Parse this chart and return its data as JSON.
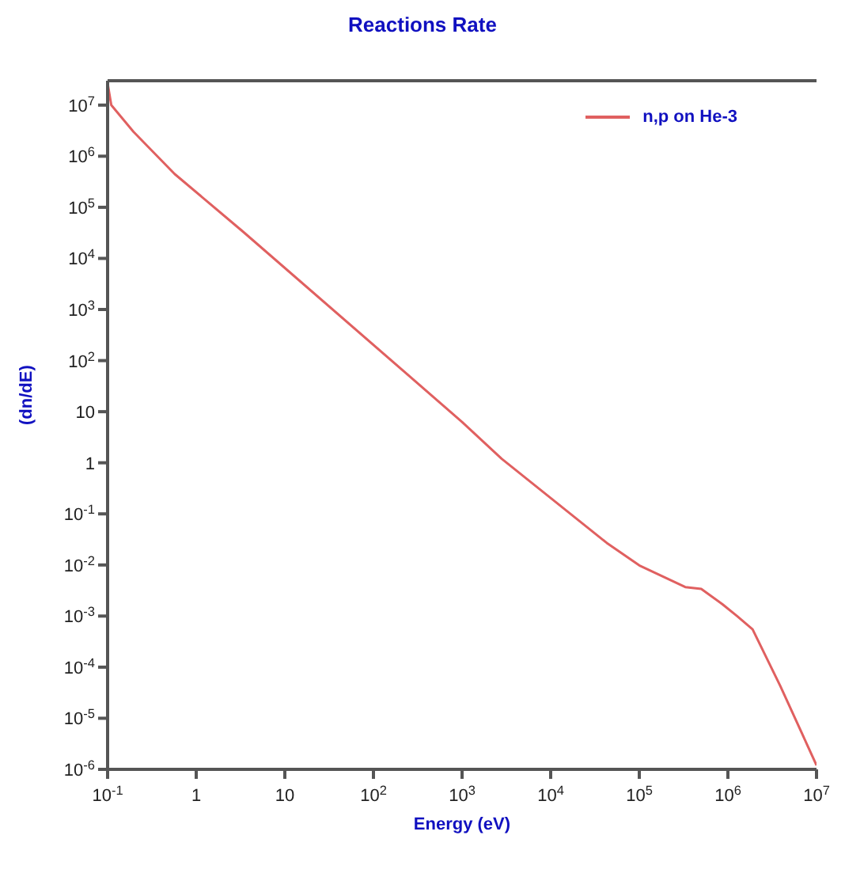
{
  "chart_data": {
    "type": "line",
    "title": "Reactions Rate",
    "xlabel": "Energy (eV)",
    "ylabel": "(dn/dE)",
    "x": [
      0.1,
      0.11,
      0.196,
      0.57,
      3.4,
      1000,
      2800,
      43000,
      100000,
      330000,
      500000,
      870000,
      1270000,
      1900000,
      3900000,
      10000000
    ],
    "series": [
      {
        "name": "n,p on He-3",
        "color": "#e06060",
        "values": [
          27000000,
          10000000,
          3000000,
          450000,
          33000,
          6.3,
          1.2,
          0.027,
          0.0098,
          0.0037,
          0.0034,
          0.0017,
          0.001,
          0.00055,
          4.3e-05,
          1.2e-06
        ]
      }
    ],
    "log": "xy",
    "xlim": [
      0.1,
      10000000
    ],
    "ylim": [
      1e-06,
      30000000
    ],
    "xticks": [
      {
        "value": 0.1,
        "label": "10$^{-1}$"
      },
      1,
      10,
      {
        "value": 100,
        "label": "10$^{2}$"
      },
      {
        "value": 1000,
        "label": "10$^{3}$"
      },
      {
        "value": 10000,
        "label": "10$^{4}$"
      },
      {
        "value": 100000,
        "label": "10$^{5}$"
      },
      {
        "value": 1000000,
        "label": "10$^{6}$"
      },
      {
        "value": 10000000,
        "label": "10$^{7}$"
      }
    ],
    "yticks": [
      {
        "value": 1e-06,
        "label": "10$^{-6}$"
      },
      {
        "value": 1e-05,
        "label": "10$^{-5}$"
      },
      {
        "value": 0.0001,
        "label": "10$^{-4}$"
      },
      {
        "value": 0.001,
        "label": "10$^{-3}$"
      },
      {
        "value": 0.01,
        "label": "10$^{-2}$"
      },
      {
        "value": 0.1,
        "label": "10$^{-1}$"
      },
      1,
      10,
      {
        "value": 100,
        "label": "10$^{2}$"
      },
      {
        "value": 1000,
        "label": "10$^{3}$"
      },
      {
        "value": 10000,
        "label": "10$^{4}$"
      },
      {
        "value": 100000,
        "label": "10$^{5}$"
      },
      {
        "value": 1000000,
        "label": "10$^{6}$"
      },
      {
        "value": 10000000,
        "label": "10$^{7}$"
      }
    ],
    "grid": false,
    "legend": "top right",
    "marker": "none",
    "line_style": "solid"
  }
}
